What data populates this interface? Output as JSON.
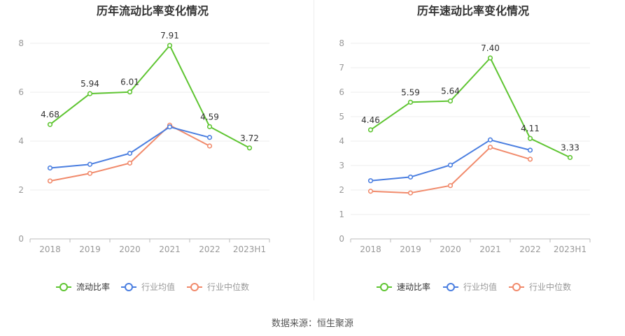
{
  "source_label": "数据来源：恒生聚源",
  "chart_data": [
    {
      "type": "line",
      "title": "历年流动比率变化情况",
      "categories": [
        "2018",
        "2019",
        "2020",
        "2021",
        "2022",
        "2023H1"
      ],
      "ylim": [
        0,
        8
      ],
      "yticks": [
        0,
        2,
        4,
        6,
        8
      ],
      "ytick_labels": [
        "0",
        "2",
        "4",
        "6",
        "8"
      ],
      "grid": true,
      "legend_position": "bottom",
      "series": [
        {
          "name": "流动比率",
          "color": "#5fc532",
          "values": [
            4.68,
            5.94,
            6.01,
            7.91,
            4.59,
            3.72
          ],
          "labels": [
            "4.68",
            "5.94",
            "6.01",
            "7.91",
            "4.59",
            "3.72"
          ],
          "show_labels": true
        },
        {
          "name": "行业均值",
          "color": "#4a7ee0",
          "values": [
            2.9,
            3.05,
            3.5,
            4.58,
            4.15,
            null
          ],
          "show_labels": false
        },
        {
          "name": "行业中位数",
          "color": "#f18a6b",
          "values": [
            2.37,
            2.68,
            3.1,
            4.65,
            3.8,
            null
          ],
          "show_labels": false
        }
      ]
    },
    {
      "type": "line",
      "title": "历年速动比率变化情况",
      "categories": [
        "2018",
        "2019",
        "2020",
        "2021",
        "2022",
        "2023H1"
      ],
      "ylim": [
        0,
        8
      ],
      "yticks": [
        0,
        1,
        2,
        3,
        4,
        5,
        6,
        7,
        8
      ],
      "ytick_labels": [
        "0",
        "1",
        "2",
        "3",
        "4",
        "5",
        "6",
        "7",
        "8"
      ],
      "grid": true,
      "legend_position": "bottom",
      "series": [
        {
          "name": "速动比率",
          "color": "#5fc532",
          "values": [
            4.46,
            5.59,
            5.64,
            7.4,
            4.11,
            3.33
          ],
          "labels": [
            "4.46",
            "5.59",
            "5.64",
            "7.40",
            "4.11",
            "3.33"
          ],
          "show_labels": true
        },
        {
          "name": "行业均值",
          "color": "#4a7ee0",
          "values": [
            2.38,
            2.53,
            3.02,
            4.05,
            3.63,
            null
          ],
          "show_labels": false
        },
        {
          "name": "行业中位数",
          "color": "#f18a6b",
          "values": [
            1.95,
            1.88,
            2.18,
            3.75,
            3.26,
            null
          ],
          "show_labels": false
        }
      ]
    }
  ]
}
